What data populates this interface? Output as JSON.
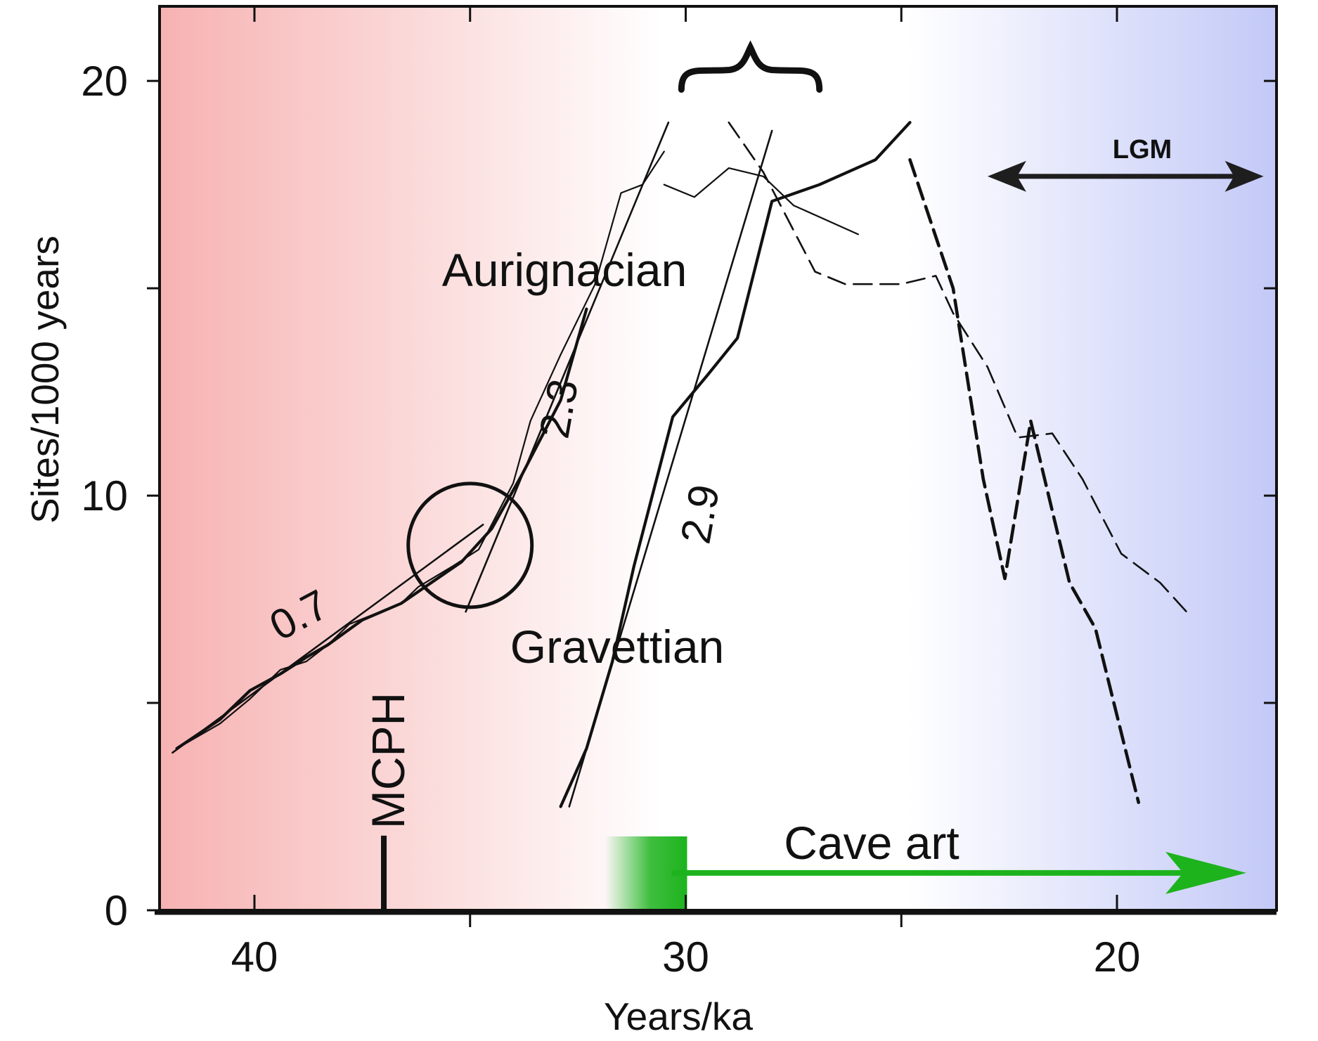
{
  "chart_data": {
    "type": "line",
    "title": "",
    "xlabel": "Years/ka",
    "ylabel": "Sites/1000 years",
    "xlim": [
      42.2,
      16.3
    ],
    "ylim": [
      0,
      21.8
    ],
    "x_ticks": [
      40,
      30,
      20
    ],
    "x_minor_ticks": [
      35,
      25
    ],
    "y_ticks": [
      0,
      10,
      20
    ],
    "y_minor_ticks": [
      5,
      15
    ],
    "x_tick_labels": [
      "40",
      "30",
      "20"
    ],
    "y_tick_labels": [
      "0",
      "10",
      "20"
    ],
    "grid": false,
    "legend": "none",
    "background_gradient": {
      "left_color": "#f7b2b2",
      "middle_color": "#ffffff",
      "right_color": "#c3c9f7"
    },
    "series": [
      {
        "style": "solid-thin",
        "x": [
          41.8,
          40.8,
          40.1,
          39.4,
          38.8,
          38.3,
          37.8,
          36.6,
          36.2,
          35.4,
          34.8,
          34.0,
          33.6,
          32.9,
          32.1,
          31.5,
          31.0,
          30.5
        ],
        "values": [
          3.9,
          4.5,
          5.1,
          5.8,
          6.0,
          6.4,
          6.9,
          7.4,
          7.8,
          8.3,
          8.7,
          10.3,
          11.8,
          13.4,
          15.1,
          17.3,
          17.5,
          18.3
        ]
      },
      {
        "style": "solid-thin",
        "x": [
          30.5,
          29.8,
          29.0,
          28.2,
          27.5,
          26.0
        ],
        "values": [
          17.5,
          17.2,
          17.9,
          17.7,
          17.0,
          16.3
        ]
      },
      {
        "style": "dashed-thin",
        "x": [
          29.0,
          28.2,
          27.0,
          26.3,
          25.0,
          24.2,
          23.8,
          23.0,
          22.3,
          21.5,
          20.8,
          19.9,
          19.0,
          18.3
        ],
        "values": [
          19.0,
          17.8,
          15.4,
          15.1,
          15.1,
          15.3,
          14.4,
          13.1,
          11.4,
          11.5,
          10.4,
          8.6,
          7.9,
          7.1
        ]
      },
      {
        "style": "solid-thick",
        "x": [
          41.8,
          40.8,
          40.1,
          39.4,
          38.8,
          38.3,
          37.5,
          36.6,
          35.9,
          35.2,
          34.5,
          33.8,
          32.9,
          32.3
        ],
        "values": [
          3.9,
          4.6,
          5.3,
          5.7,
          6.1,
          6.4,
          7.0,
          7.4,
          7.9,
          8.4,
          9.2,
          10.5,
          12.3,
          14.5
        ]
      },
      {
        "style": "solid-thick",
        "x": [
          32.9,
          32.3,
          31.7,
          31.2,
          30.3,
          29.5,
          28.8,
          28.0,
          26.9,
          25.6,
          24.8
        ],
        "values": [
          2.5,
          3.9,
          6.0,
          8.3,
          11.9,
          12.9,
          13.8,
          17.1,
          17.5,
          18.1,
          19.0
        ]
      },
      {
        "style": "dashed-thick",
        "x": [
          24.8,
          23.8,
          23.1,
          22.6,
          22.0,
          21.1,
          20.5,
          19.5
        ],
        "values": [
          18.1,
          15.0,
          10.4,
          8.0,
          11.8,
          7.9,
          6.8,
          2.6
        ]
      },
      {
        "style": "fit-line",
        "label": "0.7",
        "x": [
          41.9,
          34.7
        ],
        "values": [
          3.8,
          9.3
        ]
      },
      {
        "style": "fit-line",
        "label": "2.3",
        "x": [
          35.1,
          30.4
        ],
        "values": [
          7.2,
          19.0
        ]
      },
      {
        "style": "fit-line",
        "label": "2.9",
        "x": [
          32.7,
          28.0
        ],
        "values": [
          2.5,
          18.8
        ]
      }
    ],
    "annotations": {
      "aurignacian": "Aurignacian",
      "gravettian": "Gravettian",
      "mcph": "MCPH",
      "cave_art": "Cave art",
      "lgm": "LGM",
      "rate_07": "0.7",
      "rate_23": "2.3",
      "rate_29": "2.9"
    },
    "markers": {
      "mcph_x": 37.0,
      "mcph_top": 1.8,
      "circle_center": [
        35.0,
        8.8
      ],
      "cave_art_start": 30.0,
      "cave_art_end": 17.0,
      "cave_art_y": 0.9,
      "lgm_start": 23.0,
      "lgm_end": 16.6,
      "lgm_y": 17.7,
      "brace_x": [
        30.1,
        26.9
      ],
      "brace_y": 20.3
    },
    "colors": {
      "cave_art_arrow": "#1db31d",
      "lines": "#111111",
      "lgm_arrow": "#1e1e1e"
    }
  }
}
